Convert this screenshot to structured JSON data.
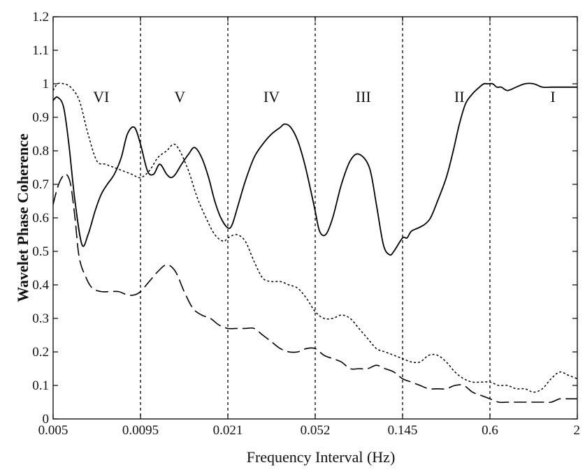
{
  "chart_data": {
    "type": "line",
    "title": "",
    "xlabel": "Frequency Interval (Hz)",
    "ylabel": "Wavelet Phase Coherence",
    "xlim": [
      0,
      7
    ],
    "ylim": [
      0,
      1.2
    ],
    "x_scale": "log-interval boundaries (each labeled boundary equally spaced)",
    "x_ticks": [
      {
        "pos": 0,
        "label": "0.005"
      },
      {
        "pos": 1,
        "label": "0.0095"
      },
      {
        "pos": 2,
        "label": "0.021"
      },
      {
        "pos": 3,
        "label": "0.052"
      },
      {
        "pos": 4,
        "label": "0.145"
      },
      {
        "pos": 5,
        "label": "0.6"
      },
      {
        "pos": 6,
        "label": "2"
      }
    ],
    "y_ticks": [
      0,
      0.1,
      0.2,
      0.3,
      0.4,
      0.5,
      0.6,
      0.7,
      0.8,
      0.9,
      1,
      1.1,
      1.2
    ],
    "y_tick_labels": [
      "0",
      "0.1",
      "0.2",
      "0.3",
      "0.4",
      "0.5",
      "0.6",
      "0.7",
      "0.8",
      "0.9",
      "1",
      "1.1",
      "1.2"
    ],
    "grid": false,
    "boundaries": [
      1,
      2,
      3,
      4,
      5
    ],
    "regions": [
      {
        "label": "VI",
        "x": 0.55,
        "y": 0.96
      },
      {
        "label": "V",
        "x": 1.45,
        "y": 0.96
      },
      {
        "label": "IV",
        "x": 2.5,
        "y": 0.96
      },
      {
        "label": "III",
        "x": 3.55,
        "y": 0.96
      },
      {
        "label": "II",
        "x": 4.65,
        "y": 0.96
      },
      {
        "label": "I",
        "x": 5.72,
        "y": 0.96
      }
    ],
    "series": [
      {
        "style": "solid",
        "color": "#000000",
        "x": [
          0.0,
          0.05,
          0.12,
          0.18,
          0.25,
          0.33,
          0.4,
          0.48,
          0.55,
          0.62,
          0.7,
          0.78,
          0.85,
          0.93,
          1.0,
          1.08,
          1.15,
          1.22,
          1.3,
          1.35,
          1.4,
          1.47,
          1.55,
          1.62,
          1.7,
          1.78,
          1.85,
          1.92,
          2.0,
          2.05,
          2.12,
          2.2,
          2.3,
          2.4,
          2.5,
          2.6,
          2.65,
          2.72,
          2.8,
          2.88,
          2.95,
          3.0,
          3.05,
          3.12,
          3.2,
          3.3,
          3.4,
          3.5,
          3.62,
          3.7,
          3.78,
          3.85,
          3.9,
          4.0,
          4.05,
          4.1,
          4.18,
          4.25,
          4.32,
          4.4,
          4.5,
          4.58,
          4.65,
          4.72,
          4.8,
          4.88,
          4.93,
          4.97,
          5.03,
          5.08,
          5.13,
          5.2,
          5.3,
          5.4,
          5.5,
          5.6,
          5.7,
          5.8,
          5.9,
          6.0
        ],
        "y": [
          0.95,
          0.96,
          0.93,
          0.82,
          0.65,
          0.52,
          0.55,
          0.62,
          0.67,
          0.7,
          0.73,
          0.78,
          0.85,
          0.87,
          0.82,
          0.74,
          0.73,
          0.76,
          0.73,
          0.72,
          0.73,
          0.76,
          0.79,
          0.81,
          0.78,
          0.72,
          0.65,
          0.6,
          0.57,
          0.58,
          0.64,
          0.71,
          0.78,
          0.82,
          0.85,
          0.87,
          0.88,
          0.87,
          0.83,
          0.76,
          0.68,
          0.62,
          0.56,
          0.55,
          0.6,
          0.7,
          0.77,
          0.79,
          0.75,
          0.64,
          0.52,
          0.49,
          0.5,
          0.54,
          0.54,
          0.56,
          0.57,
          0.58,
          0.6,
          0.65,
          0.72,
          0.8,
          0.88,
          0.94,
          0.97,
          0.99,
          1.0,
          1.0,
          1.0,
          0.99,
          0.99,
          0.98,
          0.99,
          1.0,
          1.0,
          0.99,
          0.99,
          0.99,
          0.99,
          0.99
        ]
      },
      {
        "style": "dotted",
        "color": "#000000",
        "x": [
          0.0,
          0.05,
          0.12,
          0.2,
          0.3,
          0.4,
          0.5,
          0.6,
          0.7,
          0.8,
          0.9,
          1.0,
          1.1,
          1.2,
          1.3,
          1.38,
          1.45,
          1.55,
          1.65,
          1.75,
          1.85,
          1.95,
          2.0,
          2.1,
          2.2,
          2.3,
          2.4,
          2.5,
          2.6,
          2.7,
          2.8,
          2.9,
          3.0,
          3.1,
          3.2,
          3.3,
          3.4,
          3.5,
          3.6,
          3.7,
          3.8,
          3.9,
          4.0,
          4.1,
          4.2,
          4.3,
          4.4,
          4.5,
          4.6,
          4.7,
          4.8,
          4.9,
          5.0,
          5.1,
          5.2,
          5.3,
          5.4,
          5.5,
          5.6,
          5.7,
          5.8,
          5.9,
          6.0
        ],
        "y": [
          0.98,
          1.0,
          1.0,
          0.99,
          0.95,
          0.85,
          0.77,
          0.76,
          0.75,
          0.74,
          0.73,
          0.72,
          0.74,
          0.78,
          0.8,
          0.82,
          0.8,
          0.74,
          0.66,
          0.6,
          0.55,
          0.53,
          0.54,
          0.55,
          0.53,
          0.47,
          0.42,
          0.41,
          0.41,
          0.4,
          0.39,
          0.36,
          0.32,
          0.3,
          0.3,
          0.31,
          0.3,
          0.27,
          0.24,
          0.21,
          0.2,
          0.19,
          0.18,
          0.17,
          0.17,
          0.19,
          0.19,
          0.17,
          0.14,
          0.12,
          0.11,
          0.11,
          0.11,
          0.1,
          0.1,
          0.09,
          0.09,
          0.08,
          0.09,
          0.12,
          0.14,
          0.13,
          0.12
        ]
      },
      {
        "style": "dashed",
        "color": "#000000",
        "x": [
          0.0,
          0.05,
          0.1,
          0.15,
          0.2,
          0.25,
          0.3,
          0.38,
          0.45,
          0.55,
          0.65,
          0.75,
          0.85,
          0.93,
          1.0,
          1.1,
          1.2,
          1.3,
          1.4,
          1.5,
          1.6,
          1.7,
          1.8,
          1.9,
          2.0,
          2.1,
          2.2,
          2.3,
          2.4,
          2.5,
          2.6,
          2.7,
          2.8,
          2.9,
          3.0,
          3.1,
          3.2,
          3.3,
          3.4,
          3.5,
          3.6,
          3.7,
          3.8,
          3.9,
          4.0,
          4.1,
          4.2,
          4.3,
          4.4,
          4.5,
          4.6,
          4.7,
          4.8,
          4.9,
          5.0,
          5.1,
          5.2,
          5.3,
          5.4,
          5.5,
          5.6,
          5.7,
          5.8,
          5.9,
          6.0
        ],
        "y": [
          0.64,
          0.69,
          0.72,
          0.73,
          0.7,
          0.6,
          0.48,
          0.42,
          0.39,
          0.38,
          0.38,
          0.38,
          0.37,
          0.37,
          0.38,
          0.41,
          0.44,
          0.46,
          0.44,
          0.38,
          0.33,
          0.31,
          0.3,
          0.28,
          0.27,
          0.27,
          0.27,
          0.27,
          0.25,
          0.23,
          0.21,
          0.2,
          0.2,
          0.21,
          0.21,
          0.19,
          0.18,
          0.17,
          0.15,
          0.15,
          0.15,
          0.16,
          0.15,
          0.14,
          0.12,
          0.11,
          0.1,
          0.09,
          0.09,
          0.09,
          0.1,
          0.1,
          0.08,
          0.07,
          0.06,
          0.05,
          0.05,
          0.05,
          0.05,
          0.05,
          0.05,
          0.05,
          0.06,
          0.06,
          0.06
        ]
      }
    ]
  }
}
